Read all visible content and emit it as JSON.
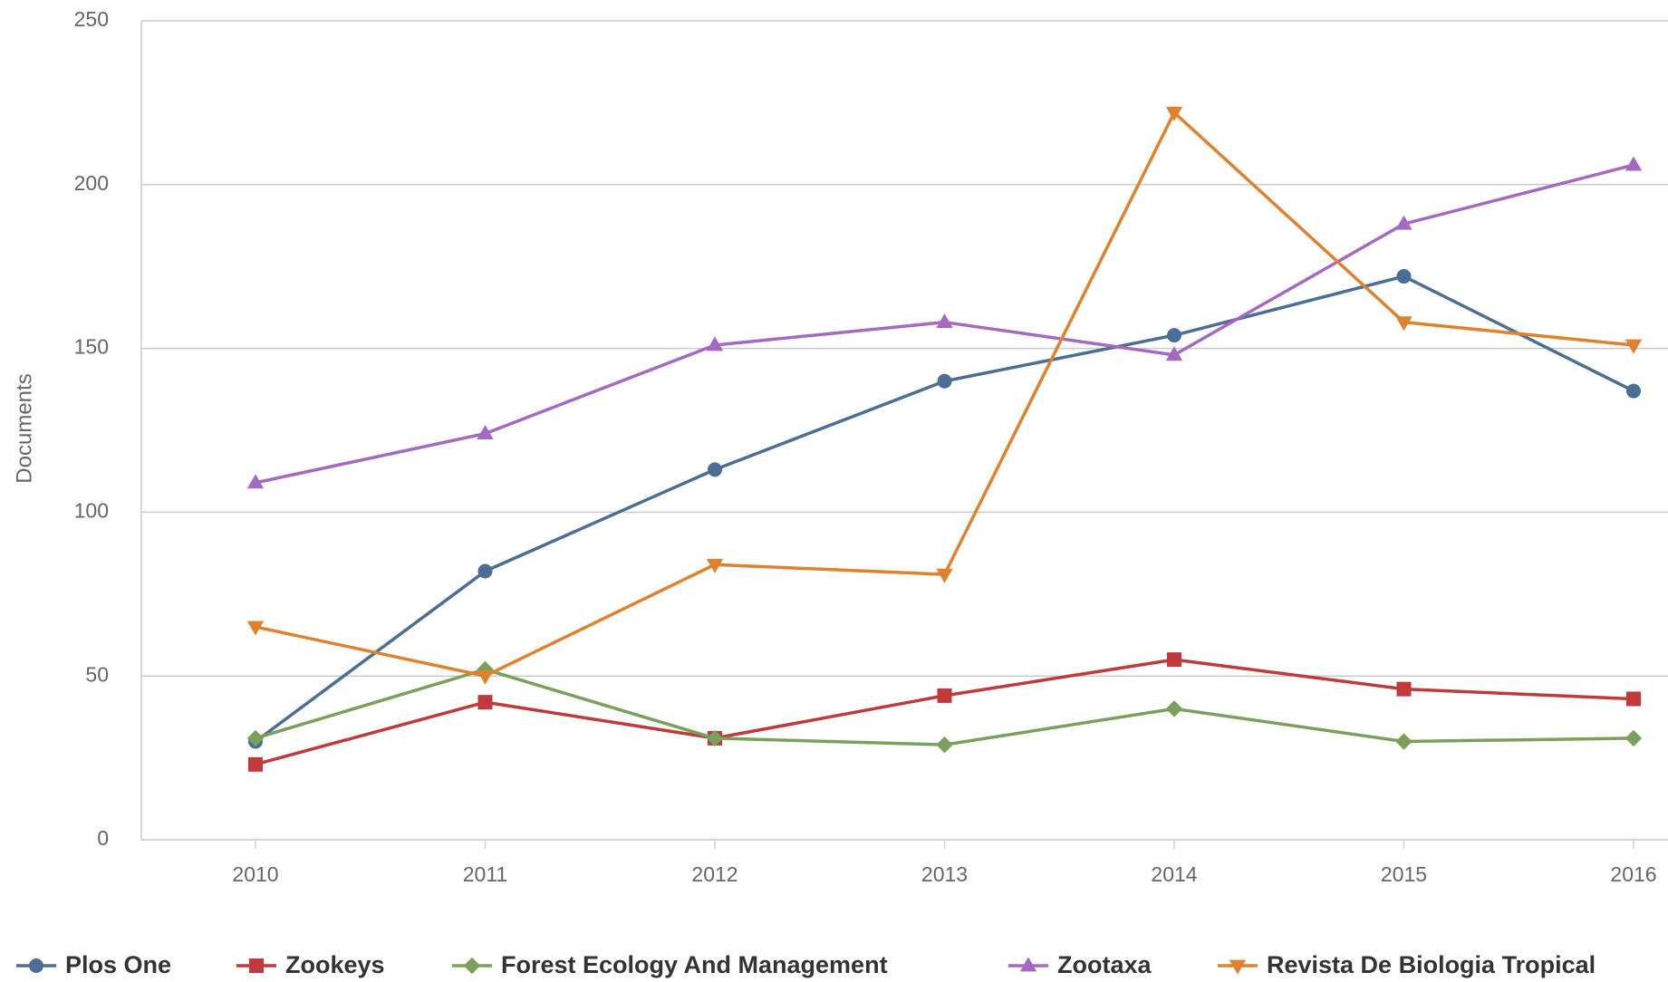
{
  "chart_data": {
    "type": "line",
    "y_label": "Documents",
    "categories": [
      "2010",
      "2011",
      "2012",
      "2013",
      "2014",
      "2015",
      "2016"
    ],
    "ylim": [
      0,
      250
    ],
    "yticks": [
      0,
      50,
      100,
      150,
      200,
      250
    ],
    "grid": true,
    "legend": "bottom",
    "series": [
      {
        "name": "Plos One",
        "color": "#4a6e96",
        "marker": "circle",
        "values": [
          30,
          82,
          113,
          140,
          154,
          172,
          137
        ]
      },
      {
        "name": "Zookeys",
        "color": "#c0393b",
        "marker": "square",
        "values": [
          23,
          42,
          31,
          44,
          55,
          46,
          43
        ]
      },
      {
        "name": "Forest Ecology And Management",
        "color": "#7ba05b",
        "marker": "diamond",
        "values": [
          31,
          52,
          31,
          29,
          40,
          30,
          31
        ]
      },
      {
        "name": "Zootaxa",
        "color": "#a569c4",
        "marker": "triangle-up",
        "values": [
          109,
          124,
          151,
          158,
          148,
          188,
          206
        ]
      },
      {
        "name": "Revista De Biologia Tropical",
        "color": "#e0822d",
        "marker": "triangle-down",
        "values": [
          65,
          50,
          84,
          81,
          222,
          158,
          151
        ]
      }
    ]
  }
}
